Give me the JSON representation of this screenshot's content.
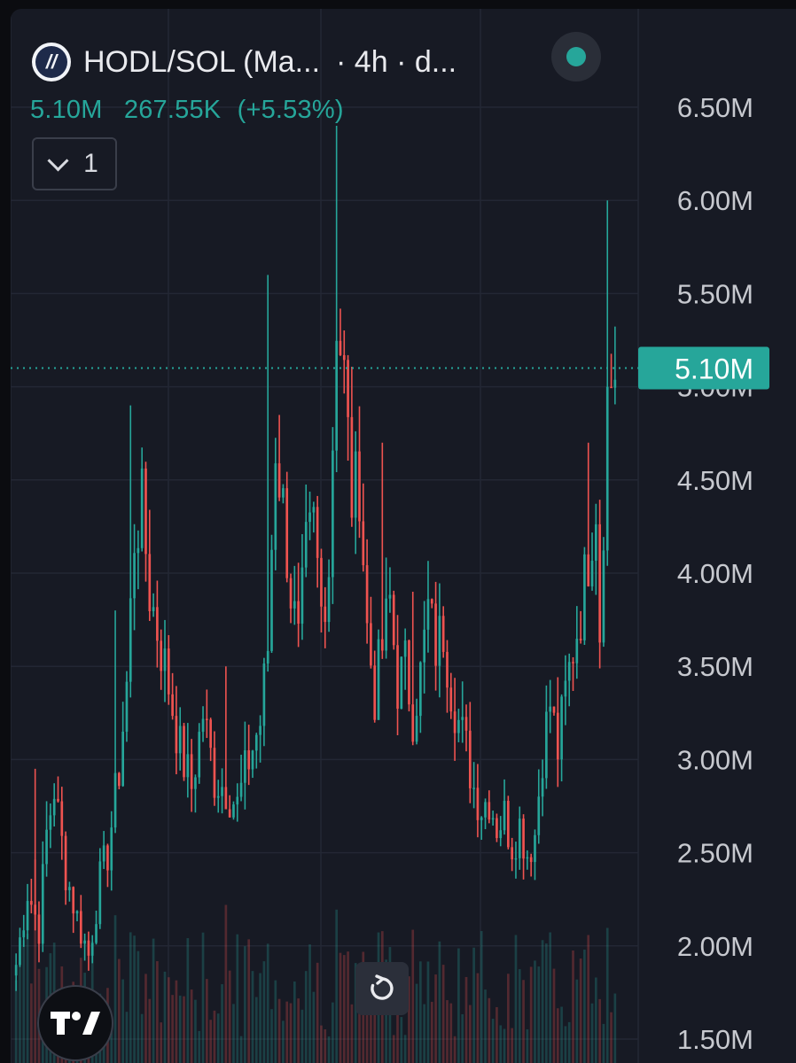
{
  "header": {
    "symbol": "HODL/SOL (Ma...",
    "interval": "· 4h · d...",
    "logo_icon": "hodl-logo-icon",
    "status_color": "#26a69a"
  },
  "price_info": {
    "last": "5.10M",
    "change": "267.55K",
    "change_pct": "(+5.53%)"
  },
  "indicator_toggle": {
    "count": "1"
  },
  "colors": {
    "up": "#26a69a",
    "down": "#ef5350",
    "background": "#171a24",
    "grid": "#232734",
    "axis_text": "#c7c9cf"
  },
  "chart_data": {
    "type": "candlestick",
    "y_axis": {
      "ticks": [
        "1.50M",
        "2.00M",
        "2.50M",
        "3.00M",
        "3.50M",
        "4.00M",
        "4.50M",
        "5.00M",
        "5.50M",
        "6.00M",
        "6.50M"
      ],
      "tick_values": [
        1500000,
        2000000,
        2500000,
        3000000,
        3500000,
        4000000,
        4500000,
        5000000,
        5500000,
        6000000,
        6500000
      ],
      "range": [
        1400000,
        6600000
      ],
      "position": "right"
    },
    "current_price": {
      "label": "5.10M",
      "value": 5100000
    },
    "grid": true,
    "anchors": [
      [
        0,
        1.9
      ],
      [
        3,
        2.3
      ],
      [
        6,
        2.1
      ],
      [
        8,
        2.6
      ],
      [
        10,
        2.85
      ],
      [
        13,
        2.4
      ],
      [
        16,
        2.15
      ],
      [
        19,
        1.95
      ],
      [
        22,
        2.35
      ],
      [
        24,
        2.5
      ],
      [
        27,
        2.95
      ],
      [
        29,
        3.4
      ],
      [
        31,
        4.2
      ],
      [
        33,
        4.35
      ],
      [
        35,
        3.9
      ],
      [
        37,
        3.7
      ],
      [
        40,
        3.4
      ],
      [
        43,
        3.05
      ],
      [
        46,
        2.85
      ],
      [
        49,
        3.25
      ],
      [
        52,
        2.9
      ],
      [
        55,
        2.85
      ],
      [
        58,
        2.75
      ],
      [
        61,
        3.0
      ],
      [
        64,
        3.2
      ],
      [
        66,
        3.6
      ],
      [
        68,
        4.7
      ],
      [
        70,
        4.35
      ],
      [
        72,
        3.9
      ],
      [
        74,
        3.6
      ],
      [
        76,
        4.1
      ],
      [
        78,
        4.25
      ],
      [
        80,
        3.8
      ],
      [
        82,
        4.05
      ],
      [
        84,
        5.4
      ],
      [
        86,
        5.05
      ],
      [
        88,
        4.4
      ],
      [
        90,
        4.5
      ],
      [
        92,
        3.7
      ],
      [
        94,
        3.35
      ],
      [
        96,
        3.6
      ],
      [
        98,
        3.85
      ],
      [
        100,
        3.4
      ],
      [
        102,
        3.5
      ],
      [
        104,
        3.25
      ],
      [
        106,
        3.45
      ],
      [
        108,
        3.8
      ],
      [
        110,
        3.6
      ],
      [
        112,
        3.7
      ],
      [
        114,
        3.4
      ],
      [
        116,
        3.2
      ],
      [
        118,
        3.05
      ],
      [
        120,
        2.85
      ],
      [
        122,
        2.75
      ],
      [
        124,
        2.8
      ],
      [
        126,
        2.65
      ],
      [
        128,
        2.7
      ],
      [
        130,
        2.55
      ],
      [
        132,
        2.65
      ],
      [
        134,
        2.5
      ],
      [
        136,
        2.6
      ],
      [
        138,
        3.05
      ],
      [
        140,
        3.3
      ],
      [
        142,
        3.05
      ],
      [
        144,
        3.35
      ],
      [
        146,
        3.6
      ],
      [
        148,
        3.8
      ],
      [
        150,
        4.1
      ],
      [
        152,
        4.4
      ],
      [
        153,
        3.7
      ],
      [
        155,
        4.95
      ],
      [
        157,
        5.1
      ]
    ],
    "spikes": [
      [
        5,
        2.95
      ],
      [
        26,
        3.8
      ],
      [
        30,
        4.9
      ],
      [
        55,
        3.5
      ],
      [
        66,
        5.6
      ],
      [
        84,
        6.4
      ],
      [
        96,
        4.7
      ],
      [
        104,
        3.9
      ],
      [
        150,
        4.7
      ],
      [
        155,
        6.0
      ]
    ],
    "candle_count": 158,
    "volume": true
  }
}
